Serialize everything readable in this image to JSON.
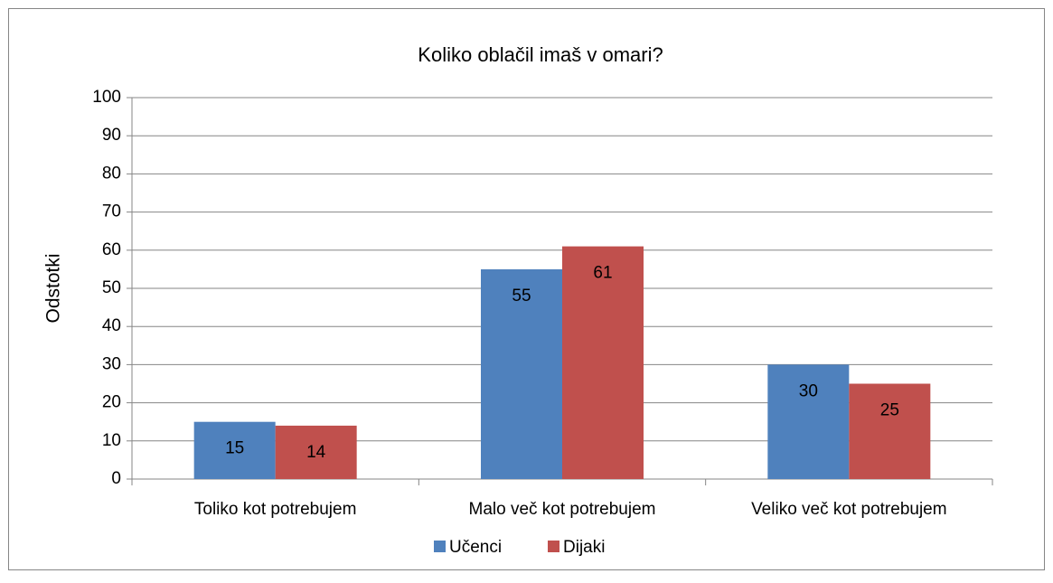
{
  "chart_data": {
    "type": "bar",
    "title": "Koliko oblačil imaš v omari?",
    "y_label": "Odstotki",
    "categories": [
      "Toliko kot potrebujem",
      "Malo več kot potrebujem",
      "Veliko več kot potrebujem"
    ],
    "series": [
      {
        "name": "Učenci",
        "color": "#4f81bd",
        "values": [
          15,
          55,
          30
        ]
      },
      {
        "name": "Dijaki",
        "color": "#c0504d",
        "values": [
          14,
          61,
          25
        ]
      }
    ],
    "ylim": [
      0,
      100
    ],
    "yticks": [
      0,
      10,
      20,
      30,
      40,
      50,
      60,
      70,
      80,
      90,
      100
    ],
    "grid": true,
    "legend": "bottom"
  }
}
